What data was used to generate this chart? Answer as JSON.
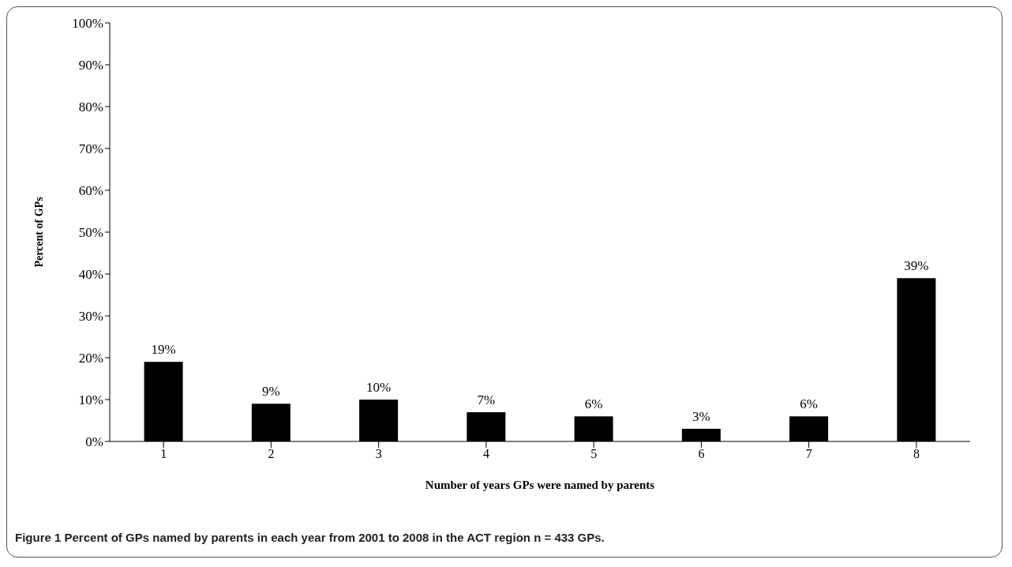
{
  "chart_data": {
    "type": "bar",
    "xlabel": "Number of years GPs were named by parents",
    "ylabel": "Percent of GPs",
    "categories": [
      "1",
      "2",
      "3",
      "4",
      "5",
      "6",
      "7",
      "8"
    ],
    "values": [
      19,
      9,
      10,
      7,
      6,
      3,
      6,
      39
    ],
    "color": "#000000",
    "value_labels": [
      "19%",
      "9%",
      "10%",
      "7%",
      "6%",
      "3%",
      "6%",
      "39%"
    ],
    "ylim": [
      0,
      100
    ],
    "yticks": [
      {
        "value": 0,
        "label": "0%"
      },
      {
        "value": 10,
        "label": "10%"
      },
      {
        "value": 20,
        "label": "20%"
      },
      {
        "value": 30,
        "label": "30%"
      },
      {
        "value": 40,
        "label": "40%"
      },
      {
        "value": 50,
        "label": "50%"
      },
      {
        "value": 60,
        "label": "60%"
      },
      {
        "value": 70,
        "label": "70%"
      },
      {
        "value": 80,
        "label": "80%"
      },
      {
        "value": 90,
        "label": "90%"
      },
      {
        "value": 100,
        "label": "100%"
      }
    ],
    "grid": false,
    "legend": false,
    "annotations": [
      "Figure 1 Percent of GPs named by parents in each year from 2001 to 2008 in the ACT region n = 433 GPs."
    ]
  }
}
